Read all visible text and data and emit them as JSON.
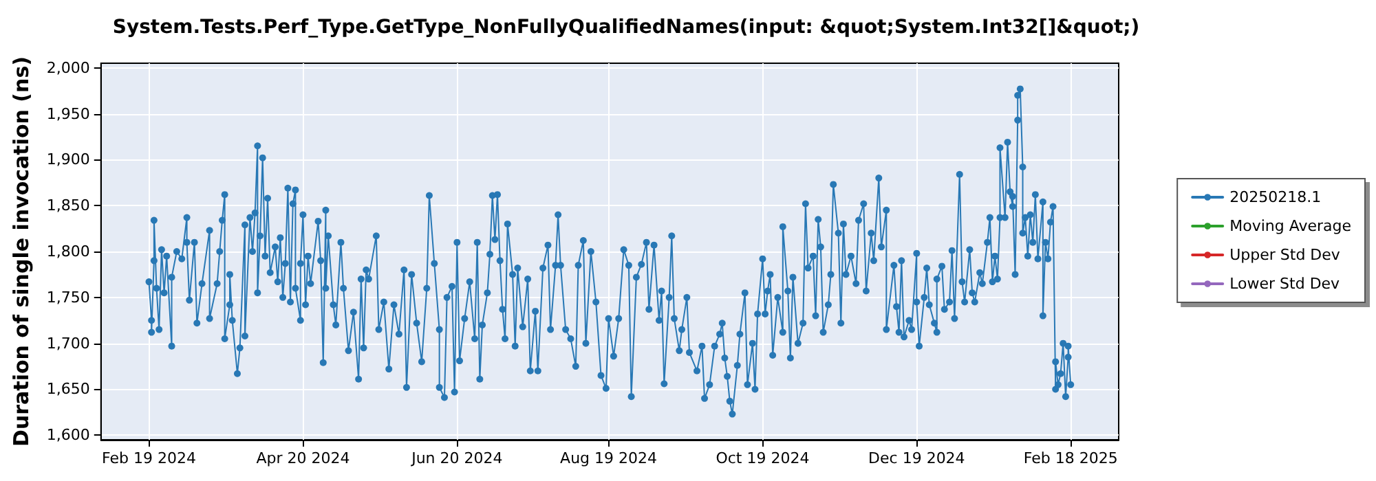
{
  "chart_data": {
    "type": "line",
    "title": "System.Tests.Perf_Type.GetType_NonFullyQualifiedNames(input: &quot;System.Int32[]&quot;)",
    "ylabel": "Duration of single invocation (ns)",
    "xlim": [
      "2024-01-31",
      "2025-03-09"
    ],
    "xticks": [
      {
        "value": "2024-02-19",
        "label": "Feb 19 2024"
      },
      {
        "value": "2024-04-20",
        "label": "Apr 20 2024"
      },
      {
        "value": "2024-06-20",
        "label": "Jun 20 2024"
      },
      {
        "value": "2024-08-19",
        "label": "Aug 19 2024"
      },
      {
        "value": "2024-10-19",
        "label": "Oct 19 2024"
      },
      {
        "value": "2024-12-19",
        "label": "Dec 19 2024"
      },
      {
        "value": "2025-02-18",
        "label": "Feb 18 2025"
      }
    ],
    "ylim": [
      1595,
      2005
    ],
    "yticks": [
      {
        "value": 1600,
        "label": "1,600"
      },
      {
        "value": 1650,
        "label": "1,650"
      },
      {
        "value": 1700,
        "label": "1,700"
      },
      {
        "value": 1750,
        "label": "1,750"
      },
      {
        "value": 1800,
        "label": "1,800"
      },
      {
        "value": 1850,
        "label": "1,850"
      },
      {
        "value": 1900,
        "label": "1,900"
      },
      {
        "value": 1950,
        "label": "1,950"
      },
      {
        "value": 2000,
        "label": "2,000"
      }
    ],
    "grid": true,
    "legend": "right",
    "marker": "circle",
    "line_style": "solid",
    "series": [
      {
        "name": "20250218.1",
        "color": "#2878b5",
        "x": [
          "2024-02-19",
          "2024-02-20",
          "2024-02-20",
          "2024-02-21",
          "2024-02-21",
          "2024-02-22",
          "2024-02-23",
          "2024-02-24",
          "2024-02-25",
          "2024-02-26",
          "2024-02-28",
          "2024-02-28",
          "2024-03-01",
          "2024-03-03",
          "2024-03-05",
          "2024-03-05",
          "2024-03-06",
          "2024-03-08",
          "2024-03-09",
          "2024-03-11",
          "2024-03-14",
          "2024-03-14",
          "2024-03-17",
          "2024-03-18",
          "2024-03-19",
          "2024-03-20",
          "2024-03-20",
          "2024-03-22",
          "2024-03-22",
          "2024-03-23",
          "2024-03-25",
          "2024-03-26",
          "2024-03-28",
          "2024-03-28",
          "2024-03-30",
          "2024-03-31",
          "2024-04-01",
          "2024-04-02",
          "2024-04-02",
          "2024-04-03",
          "2024-04-04",
          "2024-04-05",
          "2024-04-06",
          "2024-04-07",
          "2024-04-09",
          "2024-04-10",
          "2024-04-11",
          "2024-04-12",
          "2024-04-13",
          "2024-04-14",
          "2024-04-15",
          "2024-04-16",
          "2024-04-17",
          "2024-04-17",
          "2024-04-19",
          "2024-04-19",
          "2024-04-20",
          "2024-04-21",
          "2024-04-22",
          "2024-04-23",
          "2024-04-26",
          "2024-04-27",
          "2024-04-28",
          "2024-04-29",
          "2024-04-29",
          "2024-04-30",
          "2024-05-02",
          "2024-05-03",
          "2024-05-05",
          "2024-05-06",
          "2024-05-08",
          "2024-05-10",
          "2024-05-12",
          "2024-05-13",
          "2024-05-14",
          "2024-05-15",
          "2024-05-16",
          "2024-05-19",
          "2024-05-20",
          "2024-05-22",
          "2024-05-24",
          "2024-05-26",
          "2024-05-28",
          "2024-05-30",
          "2024-05-31",
          "2024-06-02",
          "2024-06-04",
          "2024-06-06",
          "2024-06-08",
          "2024-06-09",
          "2024-06-11",
          "2024-06-13",
          "2024-06-13",
          "2024-06-15",
          "2024-06-16",
          "2024-06-18",
          "2024-06-19",
          "2024-06-20",
          "2024-06-21",
          "2024-06-23",
          "2024-06-25",
          "2024-06-27",
          "2024-06-28",
          "2024-06-29",
          "2024-06-30",
          "2024-07-02",
          "2024-07-03",
          "2024-07-04",
          "2024-07-05",
          "2024-07-06",
          "2024-07-07",
          "2024-07-08",
          "2024-07-09",
          "2024-07-10",
          "2024-07-12",
          "2024-07-13",
          "2024-07-14",
          "2024-07-16",
          "2024-07-18",
          "2024-07-19",
          "2024-07-21",
          "2024-07-22",
          "2024-07-24",
          "2024-07-26",
          "2024-07-27",
          "2024-07-29",
          "2024-07-30",
          "2024-07-31",
          "2024-08-02",
          "2024-08-04",
          "2024-08-06",
          "2024-08-07",
          "2024-08-09",
          "2024-08-10",
          "2024-08-12",
          "2024-08-14",
          "2024-08-16",
          "2024-08-18",
          "2024-08-19",
          "2024-08-21",
          "2024-08-23",
          "2024-08-25",
          "2024-08-27",
          "2024-08-28",
          "2024-08-30",
          "2024-09-01",
          "2024-09-03",
          "2024-09-04",
          "2024-09-06",
          "2024-09-08",
          "2024-09-09",
          "2024-09-10",
          "2024-09-12",
          "2024-09-13",
          "2024-09-14",
          "2024-09-16",
          "2024-09-17",
          "2024-09-19",
          "2024-09-20",
          "2024-09-23",
          "2024-09-25",
          "2024-09-26",
          "2024-09-28",
          "2024-09-30",
          "2024-10-02",
          "2024-10-03",
          "2024-10-04",
          "2024-10-05",
          "2024-10-06",
          "2024-10-07",
          "2024-10-09",
          "2024-10-10",
          "2024-10-12",
          "2024-10-13",
          "2024-10-15",
          "2024-10-16",
          "2024-10-17",
          "2024-10-19",
          "2024-10-20",
          "2024-10-21",
          "2024-10-22",
          "2024-10-23",
          "2024-10-25",
          "2024-10-27",
          "2024-10-27",
          "2024-10-29",
          "2024-10-30",
          "2024-10-31",
          "2024-11-02",
          "2024-11-04",
          "2024-11-05",
          "2024-11-06",
          "2024-11-08",
          "2024-11-09",
          "2024-11-10",
          "2024-11-11",
          "2024-11-12",
          "2024-11-14",
          "2024-11-15",
          "2024-11-16",
          "2024-11-18",
          "2024-11-19",
          "2024-11-20",
          "2024-11-21",
          "2024-11-23",
          "2024-11-25",
          "2024-11-26",
          "2024-11-28",
          "2024-11-29",
          "2024-12-01",
          "2024-12-02",
          "2024-12-04",
          "2024-12-05",
          "2024-12-07",
          "2024-12-07",
          "2024-12-10",
          "2024-12-11",
          "2024-12-12",
          "2024-12-13",
          "2024-12-14",
          "2024-12-16",
          "2024-12-17",
          "2024-12-19",
          "2024-12-19",
          "2024-12-20",
          "2024-12-22",
          "2024-12-23",
          "2024-12-24",
          "2024-12-26",
          "2024-12-27",
          "2024-12-27",
          "2024-12-29",
          "2024-12-30",
          "2025-01-01",
          "2025-01-02",
          "2025-01-03",
          "2025-01-05",
          "2025-01-06",
          "2025-01-07",
          "2025-01-09",
          "2025-01-10",
          "2025-01-11",
          "2025-01-13",
          "2025-01-14",
          "2025-01-16",
          "2025-01-17",
          "2025-01-18",
          "2025-01-19",
          "2025-01-20",
          "2025-01-21",
          "2025-01-21",
          "2025-01-23",
          "2025-01-24",
          "2025-01-25",
          "2025-01-26",
          "2025-01-26",
          "2025-01-27",
          "2025-01-28",
          "2025-01-28",
          "2025-01-29",
          "2025-01-30",
          "2025-01-30",
          "2025-01-31",
          "2025-02-01",
          "2025-02-02",
          "2025-02-03",
          "2025-02-04",
          "2025-02-05",
          "2025-02-07",
          "2025-02-07",
          "2025-02-08",
          "2025-02-09",
          "2025-02-10",
          "2025-02-11",
          "2025-02-12",
          "2025-02-12",
          "2025-02-13",
          "2025-02-14",
          "2025-02-15",
          "2025-02-16",
          "2025-02-17",
          "2025-02-17",
          "2025-02-18"
        ],
        "values": [
          1767,
          1725,
          1712,
          1790,
          1834,
          1760,
          1715,
          1802,
          1755,
          1795,
          1697,
          1772,
          1800,
          1792,
          1837,
          1810,
          1747,
          1810,
          1722,
          1765,
          1823,
          1727,
          1765,
          1800,
          1834,
          1862,
          1705,
          1742,
          1775,
          1725,
          1667,
          1695,
          1829,
          1708,
          1837,
          1800,
          1842,
          1915,
          1755,
          1817,
          1902,
          1795,
          1858,
          1777,
          1805,
          1767,
          1815,
          1750,
          1787,
          1869,
          1745,
          1852,
          1867,
          1760,
          1725,
          1787,
          1840,
          1742,
          1795,
          1765,
          1833,
          1790,
          1679,
          1845,
          1760,
          1817,
          1742,
          1720,
          1810,
          1760,
          1692,
          1734,
          1661,
          1770,
          1695,
          1780,
          1770,
          1817,
          1715,
          1745,
          1672,
          1742,
          1710,
          1780,
          1652,
          1775,
          1722,
          1680,
          1760,
          1861,
          1787,
          1715,
          1652,
          1641,
          1750,
          1762,
          1647,
          1810,
          1681,
          1727,
          1767,
          1705,
          1810,
          1661,
          1720,
          1755,
          1797,
          1861,
          1813,
          1862,
          1790,
          1737,
          1705,
          1830,
          1775,
          1697,
          1782,
          1718,
          1770,
          1670,
          1735,
          1670,
          1782,
          1807,
          1715,
          1785,
          1840,
          1785,
          1715,
          1705,
          1675,
          1785,
          1812,
          1700,
          1800,
          1745,
          1665,
          1651,
          1727,
          1686,
          1727,
          1802,
          1785,
          1642,
          1772,
          1786,
          1810,
          1737,
          1807,
          1725,
          1757,
          1656,
          1750,
          1817,
          1727,
          1692,
          1715,
          1750,
          1690,
          1670,
          1697,
          1640,
          1655,
          1697,
          1710,
          1722,
          1684,
          1664,
          1637,
          1623,
          1676,
          1710,
          1755,
          1655,
          1700,
          1650,
          1732,
          1792,
          1732,
          1757,
          1775,
          1687,
          1750,
          1712,
          1827,
          1757,
          1684,
          1772,
          1700,
          1722,
          1852,
          1782,
          1795,
          1730,
          1835,
          1805,
          1712,
          1742,
          1775,
          1873,
          1820,
          1722,
          1830,
          1775,
          1795,
          1765,
          1834,
          1852,
          1757,
          1820,
          1790,
          1880,
          1805,
          1845,
          1715,
          1785,
          1740,
          1712,
          1790,
          1707,
          1725,
          1715,
          1798,
          1745,
          1697,
          1750,
          1782,
          1742,
          1722,
          1712,
          1770,
          1784,
          1737,
          1745,
          1801,
          1727,
          1884,
          1767,
          1745,
          1802,
          1755,
          1745,
          1777,
          1765,
          1810,
          1837,
          1767,
          1795,
          1770,
          1837,
          1913,
          1837,
          1919,
          1865,
          1849,
          1860,
          1775,
          1943,
          1970,
          1977,
          1892,
          1820,
          1837,
          1795,
          1840,
          1810,
          1862,
          1792,
          1854,
          1730,
          1810,
          1792,
          1832,
          1849,
          1650,
          1680,
          1655,
          1667,
          1700,
          1642,
          1685,
          1697,
          1655
        ]
      },
      {
        "name": "Moving Average",
        "color": "#2ca02c"
      },
      {
        "name": "Upper Std Dev",
        "color": "#d62728"
      },
      {
        "name": "Lower Std Dev",
        "color": "#9467bd"
      }
    ]
  }
}
